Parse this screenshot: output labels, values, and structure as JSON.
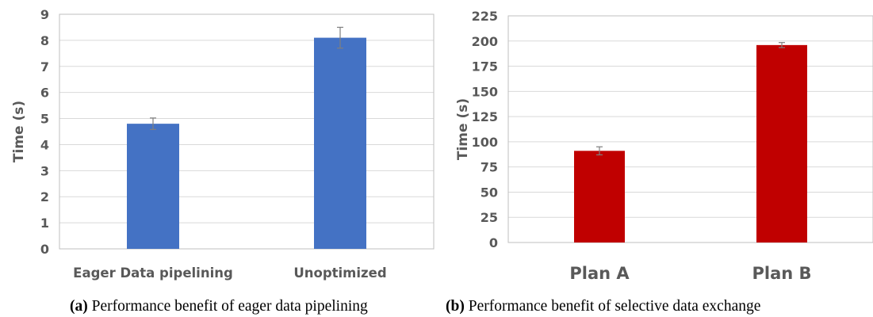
{
  "chart_data": [
    {
      "type": "bar",
      "categories": [
        "Eager Data pipelining",
        "Unoptimized"
      ],
      "values": [
        4.8,
        8.1
      ],
      "error": [
        0.22,
        0.4
      ],
      "ylabel": "Time (s)",
      "xlabel": "",
      "ylim": [
        0,
        9
      ],
      "yticks": [
        0,
        1,
        2,
        3,
        4,
        5,
        6,
        7,
        8,
        9
      ],
      "grid": true,
      "color": "#4472C4",
      "caption_label": "(a)",
      "caption_text": " Performance benefit of eager data pipelining"
    },
    {
      "type": "bar",
      "categories": [
        "Plan A",
        "Plan B"
      ],
      "values": [
        91,
        196
      ],
      "error": [
        4,
        2.5
      ],
      "ylabel": "Time (s)",
      "xlabel": "",
      "ylim": [
        0,
        225
      ],
      "yticks": [
        0,
        25,
        50,
        75,
        100,
        125,
        150,
        175,
        200,
        225
      ],
      "grid": true,
      "color": "#C00000",
      "caption_label": "(b)",
      "caption_text": " Performance benefit of selective data exchange"
    }
  ]
}
